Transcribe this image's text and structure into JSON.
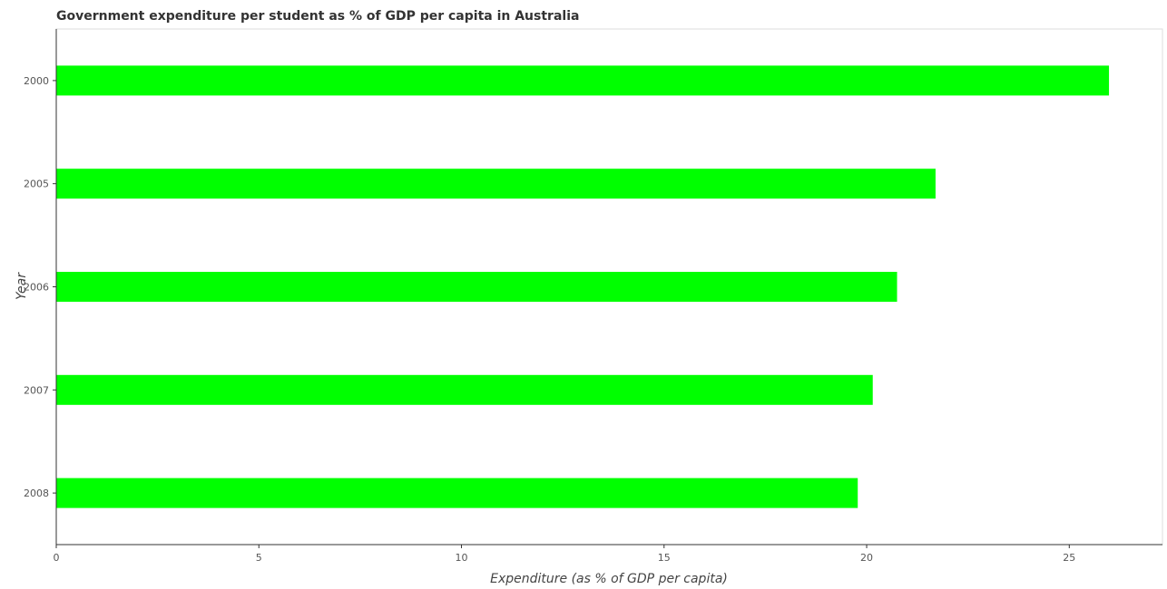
{
  "chart_data": {
    "type": "bar",
    "orientation": "horizontal",
    "title": "Government expenditure per student as % of GDP per capita in Australia",
    "xlabel": "Expenditure (as % of GDP per capita)",
    "ylabel": "Year",
    "categories": [
      "2000",
      "2005",
      "2006",
      "2007",
      "2008"
    ],
    "values": [
      25.98,
      21.7,
      20.75,
      20.15,
      19.78
    ],
    "xlim": [
      0,
      27.3
    ],
    "xticks": [
      "0",
      "5",
      "10",
      "15",
      "20",
      "25"
    ],
    "bar_color": "#00ff00",
    "grid": false
  }
}
